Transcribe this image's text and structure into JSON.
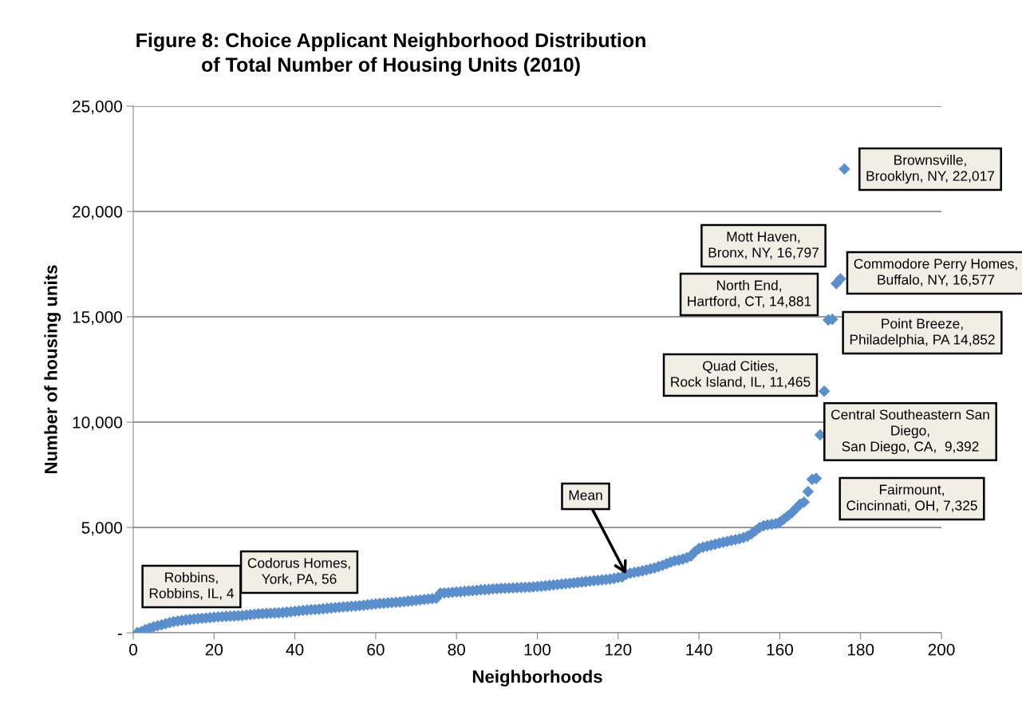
{
  "chart_data": {
    "type": "scatter",
    "title": "Figure 8: Choice Applicant Neighborhood Distribution\nof Total Number of Housing Units (2010)",
    "xlabel": "Neighborhoods",
    "ylabel": "Number of housing units",
    "x": [
      1,
      2,
      3,
      4,
      5,
      6,
      7,
      8,
      9,
      10,
      11,
      12,
      13,
      14,
      15,
      16,
      17,
      18,
      19,
      20,
      21,
      22,
      23,
      24,
      25,
      26,
      27,
      28,
      29,
      30,
      31,
      32,
      33,
      34,
      35,
      36,
      37,
      38,
      39,
      40,
      41,
      42,
      43,
      44,
      45,
      46,
      47,
      48,
      49,
      50,
      51,
      52,
      53,
      54,
      55,
      56,
      57,
      58,
      59,
      60,
      61,
      62,
      63,
      64,
      65,
      66,
      67,
      68,
      69,
      70,
      71,
      72,
      73,
      74,
      75,
      76,
      77,
      78,
      79,
      80,
      81,
      82,
      83,
      84,
      85,
      86,
      87,
      88,
      89,
      90,
      91,
      92,
      93,
      94,
      95,
      96,
      97,
      98,
      99,
      100,
      101,
      102,
      103,
      104,
      105,
      106,
      107,
      108,
      109,
      110,
      111,
      112,
      113,
      114,
      115,
      116,
      117,
      118,
      119,
      120,
      121,
      122,
      123,
      124,
      125,
      126,
      127,
      128,
      129,
      130,
      131,
      132,
      133,
      134,
      135,
      136,
      137,
      138,
      139,
      140,
      141,
      142,
      143,
      144,
      145,
      146,
      147,
      148,
      149,
      150,
      151,
      152,
      153,
      154,
      155,
      156,
      157,
      158,
      159,
      160,
      161,
      162,
      163,
      164,
      165,
      166,
      167,
      168,
      169,
      170,
      171,
      172,
      173,
      174,
      175,
      176
    ],
    "series": [
      {
        "color": "#5b8ecb",
        "values": [
          4,
          56,
          150,
          220,
          280,
          330,
          380,
          430,
          480,
          530,
          560,
          590,
          610,
          630,
          650,
          670,
          690,
          700,
          720,
          740,
          760,
          770,
          780,
          790,
          800,
          810,
          820,
          840,
          860,
          880,
          900,
          910,
          920,
          930,
          940,
          950,
          960,
          980,
          1000,
          1020,
          1040,
          1060,
          1080,
          1100,
          1110,
          1120,
          1140,
          1160,
          1180,
          1190,
          1210,
          1230,
          1240,
          1260,
          1270,
          1290,
          1310,
          1330,
          1350,
          1370,
          1390,
          1400,
          1420,
          1430,
          1450,
          1460,
          1480,
          1500,
          1520,
          1540,
          1560,
          1580,
          1600,
          1620,
          1640,
          1880,
          1890,
          1900,
          1920,
          1940,
          1950,
          1970,
          1990,
          2000,
          2020,
          2040,
          2050,
          2060,
          2080,
          2090,
          2100,
          2110,
          2120,
          2130,
          2140,
          2150,
          2160,
          2170,
          2180,
          2200,
          2210,
          2230,
          2250,
          2270,
          2290,
          2310,
          2330,
          2350,
          2370,
          2390,
          2410,
          2430,
          2450,
          2470,
          2490,
          2510,
          2530,
          2550,
          2580,
          2620,
          2650,
          2780,
          2830,
          2870,
          2900,
          2940,
          2980,
          3030,
          3080,
          3140,
          3200,
          3280,
          3350,
          3420,
          3450,
          3500,
          3560,
          3650,
          3850,
          4000,
          4060,
          4110,
          4160,
          4200,
          4250,
          4300,
          4340,
          4380,
          4420,
          4460,
          4520,
          4580,
          4700,
          4850,
          5000,
          5080,
          5120,
          5150,
          5180,
          5250,
          5400,
          5550,
          5700,
          5900,
          6100,
          6200,
          6700,
          7280,
          7325,
          9392,
          11465,
          14852,
          14881,
          16577,
          16797,
          22017
        ]
      }
    ],
    "marker": "diamond",
    "xlim": [
      0,
      200
    ],
    "xticks": [
      0,
      20,
      40,
      60,
      80,
      100,
      120,
      140,
      160,
      180,
      200
    ],
    "ylim": [
      0,
      25000
    ],
    "yticks": [
      {
        "value": 0,
        "label": "-"
      },
      {
        "value": 5000,
        "label": "5,000"
      },
      {
        "value": 10000,
        "label": "10,000"
      },
      {
        "value": 15000,
        "label": "15,000"
      },
      {
        "value": 20000,
        "label": "20,000"
      },
      {
        "value": 25000,
        "label": "25,000"
      }
    ],
    "grid": "y",
    "annotations": [
      "Robbins,\nRobbins, IL, 4",
      "Codorus Homes,\nYork, PA, 56",
      {
        "text": "Mean",
        "x": 122,
        "y": 2780
      },
      "Brownsville,\nBrooklyn, NY, 22,017",
      "Mott Haven,\nBronx, NY, 16,797",
      "Commodore Perry Homes,\nBuffalo, NY, 16,577",
      "North End,\nHartford, CT, 14,881",
      "Point Breeze,\nPhiladelphia, PA 14,852",
      "Quad Cities,\nRock Island, IL, 11,465",
      "Central Southeastern San\nDiego,\nSan Diego, CA,  9,392",
      "Fairmount,\nCincinnati, OH, 7,325"
    ]
  }
}
